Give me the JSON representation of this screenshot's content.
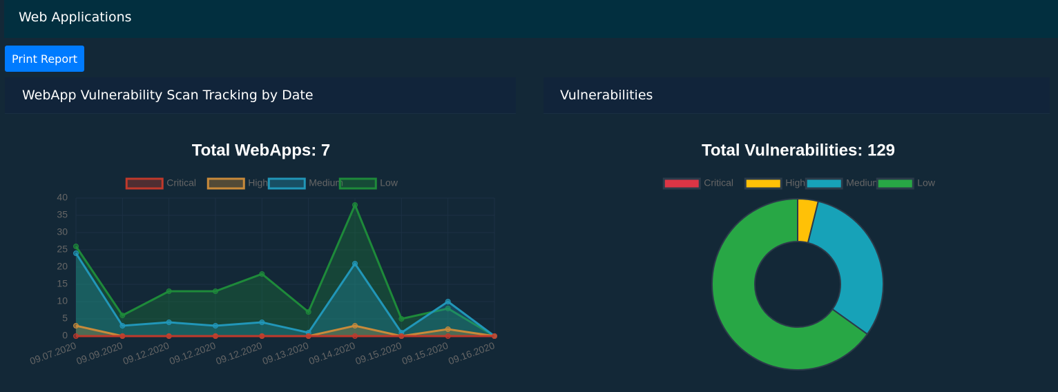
{
  "header": {
    "title": "Web Applications"
  },
  "button": {
    "label": "Print Report"
  },
  "panels": [
    {
      "title": "WebApp Vulnerability Scan Tracking by Date"
    },
    {
      "title": "Vulnerabilities"
    }
  ],
  "chart_data": [
    {
      "type": "line",
      "title": "Total WebApps: 7",
      "categories": [
        "09.07.2020",
        "09.09.2020",
        "09.12.2020",
        "09.12.2020",
        "09.12.2020",
        "09.13.2020",
        "09.14.2020",
        "09.15.2020",
        "09.15.2020",
        "09.16.2020"
      ],
      "series": [
        {
          "name": "Critical",
          "color": "#c0392b",
          "values": [
            0,
            0,
            0,
            0,
            0,
            0,
            0,
            0,
            0,
            0
          ]
        },
        {
          "name": "High",
          "color": "#c98a3a",
          "values": [
            3,
            0,
            0,
            0,
            0,
            0,
            3,
            0,
            2,
            0
          ]
        },
        {
          "name": "Medium",
          "color": "#2196b8",
          "values": [
            24,
            3,
            4,
            3,
            4,
            1,
            21,
            1,
            10,
            0
          ]
        },
        {
          "name": "Low",
          "color": "#1e8a3a",
          "values": [
            26,
            6,
            13,
            13,
            18,
            7,
            38,
            5,
            8,
            0
          ]
        }
      ],
      "ylim": [
        0,
        40
      ],
      "yticks": [
        0,
        5,
        10,
        15,
        20,
        25,
        30,
        35,
        40
      ],
      "grid": true,
      "legend": "top"
    },
    {
      "type": "doughnut",
      "title": "Total Vulnerabilities: 129",
      "categories": [
        "Critical",
        "High",
        "Medium",
        "Low"
      ],
      "values": [
        0,
        5,
        40,
        84
      ],
      "colors": [
        "#dc3545",
        "#ffc107",
        "#17a2b8",
        "#28a745"
      ],
      "legend": "top"
    }
  ]
}
